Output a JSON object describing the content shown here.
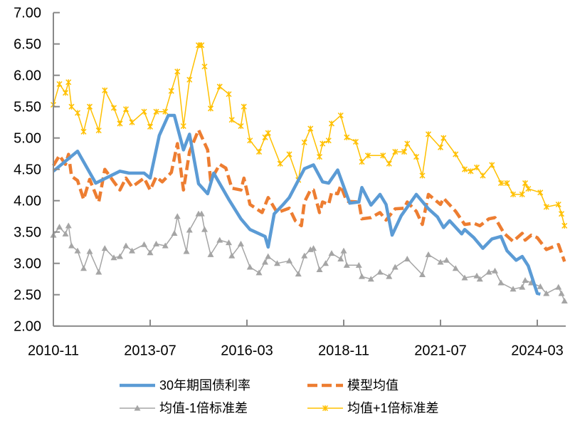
{
  "chart_data": {
    "type": "line",
    "title": "",
    "xlabel": "",
    "ylabel": "",
    "ylim": [
      2.0,
      7.0
    ],
    "yticks": [
      "2.00",
      "2.50",
      "3.00",
      "3.50",
      "4.00",
      "4.50",
      "5.00",
      "5.50",
      "6.00",
      "6.50",
      "7.00"
    ],
    "xrange": [
      "2010-11",
      "2024-12"
    ],
    "xticks": [
      "2010-11",
      "2013-07",
      "2016-03",
      "2018-11",
      "2021-07",
      "2024-03"
    ],
    "grid": false,
    "legend_position": "bottom",
    "series": [
      {
        "name": "30年期国债利率",
        "color": "#5B9BD5",
        "style": "solid",
        "marker": "none",
        "points": [
          [
            "2010-11",
            4.47
          ],
          [
            "2011-07",
            4.79
          ],
          [
            "2012-01",
            4.28
          ],
          [
            "2012-09",
            4.47
          ],
          [
            "2012-12",
            4.44
          ],
          [
            "2013-05",
            4.44
          ],
          [
            "2013-07",
            4.36
          ],
          [
            "2013-10",
            5.04
          ],
          [
            "2014-01",
            5.36
          ],
          [
            "2014-03",
            5.36
          ],
          [
            "2014-06",
            4.81
          ],
          [
            "2014-08",
            5.06
          ],
          [
            "2014-11",
            4.27
          ],
          [
            "2015-02",
            4.11
          ],
          [
            "2015-04",
            4.44
          ],
          [
            "2015-09",
            4.02
          ],
          [
            "2016-01",
            3.71
          ],
          [
            "2016-04",
            3.54
          ],
          [
            "2016-09",
            3.43
          ],
          [
            "2016-10",
            3.26
          ],
          [
            "2016-12",
            3.79
          ],
          [
            "2017-03",
            3.94
          ],
          [
            "2017-05",
            4.05
          ],
          [
            "2017-10",
            4.51
          ],
          [
            "2018-01",
            4.57
          ],
          [
            "2018-04",
            4.3
          ],
          [
            "2018-06",
            4.28
          ],
          [
            "2018-09",
            4.49
          ],
          [
            "2019-01",
            3.96
          ],
          [
            "2019-04",
            3.98
          ],
          [
            "2019-05",
            4.21
          ],
          [
            "2019-08",
            3.93
          ],
          [
            "2019-11",
            4.1
          ],
          [
            "2020-01",
            3.94
          ],
          [
            "2020-03",
            3.45
          ],
          [
            "2020-06",
            3.76
          ],
          [
            "2020-11",
            4.1
          ],
          [
            "2021-03",
            3.87
          ],
          [
            "2021-06",
            3.74
          ],
          [
            "2021-08",
            3.57
          ],
          [
            "2021-10",
            3.68
          ],
          [
            "2022-02",
            3.47
          ],
          [
            "2022-03",
            3.54
          ],
          [
            "2022-06",
            3.41
          ],
          [
            "2022-09",
            3.24
          ],
          [
            "2022-12",
            3.39
          ],
          [
            "2023-03",
            3.43
          ],
          [
            "2023-05",
            3.2
          ],
          [
            "2023-08",
            3.05
          ],
          [
            "2023-10",
            3.11
          ],
          [
            "2023-12",
            2.96
          ],
          [
            "2024-03",
            2.52
          ],
          [
            "2024-04",
            2.51
          ]
        ]
      },
      {
        "name": "模型均值",
        "color": "#ED7D31",
        "style": "dashed",
        "marker": "none",
        "points": [
          [
            "2010-11",
            4.56
          ],
          [
            "2011-01",
            4.72
          ],
          [
            "2011-03",
            4.58
          ],
          [
            "2011-04",
            4.74
          ],
          [
            "2011-05",
            4.39
          ],
          [
            "2011-07",
            4.32
          ],
          [
            "2011-09",
            4.02
          ],
          [
            "2011-11",
            4.34
          ],
          [
            "2012-02",
            3.98
          ],
          [
            "2012-04",
            4.5
          ],
          [
            "2012-07",
            4.3
          ],
          [
            "2012-09",
            4.17
          ],
          [
            "2012-11",
            4.36
          ],
          [
            "2013-01",
            4.22
          ],
          [
            "2013-05",
            4.36
          ],
          [
            "2013-07",
            4.17
          ],
          [
            "2013-09",
            4.38
          ],
          [
            "2013-11",
            4.3
          ],
          [
            "2014-02",
            4.45
          ],
          [
            "2014-04",
            4.91
          ],
          [
            "2014-06",
            4.17
          ],
          [
            "2014-08",
            4.78
          ],
          [
            "2014-11",
            5.13
          ],
          [
            "2015-02",
            4.81
          ],
          [
            "2015-03",
            4.32
          ],
          [
            "2015-06",
            4.58
          ],
          [
            "2015-08",
            4.52
          ],
          [
            "2015-10",
            4.2
          ],
          [
            "2016-01",
            4.17
          ],
          [
            "2016-02",
            4.36
          ],
          [
            "2016-04",
            3.94
          ],
          [
            "2016-08",
            3.81
          ],
          [
            "2016-10",
            4.05
          ],
          [
            "2017-01",
            3.81
          ],
          [
            "2017-05",
            3.88
          ],
          [
            "2017-07",
            3.68
          ],
          [
            "2017-09",
            3.6
          ],
          [
            "2017-10",
            3.98
          ],
          [
            "2017-12",
            4.17
          ],
          [
            "2018-01",
            4.17
          ],
          [
            "2018-03",
            3.81
          ],
          [
            "2018-04",
            3.98
          ],
          [
            "2018-06",
            3.94
          ],
          [
            "2018-07",
            4.13
          ],
          [
            "2018-09",
            4.11
          ],
          [
            "2018-10",
            4.24
          ],
          [
            "2018-12",
            3.99
          ],
          [
            "2019-04",
            3.98
          ],
          [
            "2019-05",
            3.71
          ],
          [
            "2019-08",
            3.73
          ],
          [
            "2019-11",
            3.81
          ],
          [
            "2020-01",
            3.69
          ],
          [
            "2020-04",
            3.87
          ],
          [
            "2020-07",
            3.88
          ],
          [
            "2020-08",
            3.98
          ],
          [
            "2020-11",
            3.83
          ],
          [
            "2021-01",
            3.62
          ],
          [
            "2021-03",
            4.1
          ],
          [
            "2021-07",
            3.94
          ],
          [
            "2021-08",
            4.04
          ],
          [
            "2021-12",
            3.83
          ],
          [
            "2022-03",
            3.62
          ],
          [
            "2022-06",
            3.64
          ],
          [
            "2022-08",
            3.6
          ],
          [
            "2022-11",
            3.71
          ],
          [
            "2023-01",
            3.73
          ],
          [
            "2023-04",
            3.48
          ],
          [
            "2023-07",
            3.35
          ],
          [
            "2023-10",
            3.48
          ],
          [
            "2023-11",
            3.37
          ],
          [
            "2024-01",
            3.45
          ],
          [
            "2024-03",
            3.41
          ],
          [
            "2024-06",
            3.22
          ],
          [
            "2024-10",
            3.3
          ],
          [
            "2024-12",
            3.03
          ]
        ]
      },
      {
        "name": "均值-1倍标准差",
        "color": "#A5A5A5",
        "style": "solid",
        "marker": "triangle",
        "points": [
          [
            "2010-11",
            3.45
          ],
          [
            "2011-01",
            3.58
          ],
          [
            "2011-03",
            3.47
          ],
          [
            "2011-04",
            3.6
          ],
          [
            "2011-05",
            3.28
          ],
          [
            "2011-07",
            3.2
          ],
          [
            "2011-09",
            2.92
          ],
          [
            "2011-11",
            3.19
          ],
          [
            "2012-02",
            2.86
          ],
          [
            "2012-04",
            3.24
          ],
          [
            "2012-07",
            3.09
          ],
          [
            "2012-09",
            3.11
          ],
          [
            "2012-11",
            3.28
          ],
          [
            "2013-01",
            3.2
          ],
          [
            "2013-05",
            3.3
          ],
          [
            "2013-07",
            3.17
          ],
          [
            "2013-09",
            3.31
          ],
          [
            "2013-12",
            3.28
          ],
          [
            "2014-03",
            3.48
          ],
          [
            "2014-04",
            3.75
          ],
          [
            "2014-07",
            3.19
          ],
          [
            "2014-08",
            3.53
          ],
          [
            "2014-11",
            3.79
          ],
          [
            "2014-12",
            3.79
          ],
          [
            "2015-01",
            3.54
          ],
          [
            "2015-03",
            3.14
          ],
          [
            "2015-06",
            3.37
          ],
          [
            "2015-09",
            3.33
          ],
          [
            "2015-10",
            3.12
          ],
          [
            "2016-01",
            3.31
          ],
          [
            "2016-04",
            2.94
          ],
          [
            "2016-07",
            2.85
          ],
          [
            "2016-09",
            3.02
          ],
          [
            "2016-10",
            3.11
          ],
          [
            "2017-01",
            3.0
          ],
          [
            "2017-05",
            3.04
          ],
          [
            "2017-08",
            2.83
          ],
          [
            "2017-10",
            3.12
          ],
          [
            "2017-12",
            3.22
          ],
          [
            "2018-01",
            3.24
          ],
          [
            "2018-03",
            2.9
          ],
          [
            "2018-05",
            3.0
          ],
          [
            "2018-07",
            3.16
          ],
          [
            "2018-10",
            3.07
          ],
          [
            "2018-11",
            3.2
          ],
          [
            "2018-12",
            2.97
          ],
          [
            "2019-04",
            2.97
          ],
          [
            "2019-05",
            2.79
          ],
          [
            "2019-08",
            2.75
          ],
          [
            "2019-11",
            2.86
          ],
          [
            "2020-02",
            2.79
          ],
          [
            "2020-04",
            2.94
          ],
          [
            "2020-08",
            3.07
          ],
          [
            "2021-01",
            2.82
          ],
          [
            "2021-03",
            3.14
          ],
          [
            "2021-07",
            3.02
          ],
          [
            "2021-09",
            3.05
          ],
          [
            "2021-12",
            2.92
          ],
          [
            "2022-03",
            2.77
          ],
          [
            "2022-07",
            2.8
          ],
          [
            "2022-08",
            2.75
          ],
          [
            "2022-11",
            2.86
          ],
          [
            "2023-01",
            2.88
          ],
          [
            "2023-03",
            2.69
          ],
          [
            "2023-07",
            2.59
          ],
          [
            "2023-10",
            2.62
          ],
          [
            "2023-11",
            2.73
          ],
          [
            "2024-01",
            2.69
          ],
          [
            "2024-04",
            2.63
          ],
          [
            "2024-06",
            2.52
          ],
          [
            "2024-10",
            2.62
          ],
          [
            "2024-11",
            2.52
          ],
          [
            "2024-12",
            2.4
          ]
        ]
      },
      {
        "name": "均值+1倍标准差",
        "color": "#FFC000",
        "style": "solid",
        "marker": "star",
        "points": [
          [
            "2010-11",
            5.53
          ],
          [
            "2011-01",
            5.86
          ],
          [
            "2011-03",
            5.72
          ],
          [
            "2011-04",
            5.89
          ],
          [
            "2011-05",
            5.5
          ],
          [
            "2011-07",
            5.4
          ],
          [
            "2011-09",
            5.1
          ],
          [
            "2011-11",
            5.5
          ],
          [
            "2012-02",
            5.12
          ],
          [
            "2012-04",
            5.76
          ],
          [
            "2012-07",
            5.48
          ],
          [
            "2012-09",
            5.23
          ],
          [
            "2012-11",
            5.46
          ],
          [
            "2013-01",
            5.25
          ],
          [
            "2013-05",
            5.42
          ],
          [
            "2013-07",
            5.18
          ],
          [
            "2013-09",
            5.42
          ],
          [
            "2013-12",
            5.42
          ],
          [
            "2014-02",
            5.75
          ],
          [
            "2014-04",
            6.06
          ],
          [
            "2014-06",
            5.19
          ],
          [
            "2014-08",
            5.93
          ],
          [
            "2014-11",
            6.48
          ],
          [
            "2014-12",
            6.48
          ],
          [
            "2015-01",
            6.14
          ],
          [
            "2015-03",
            5.47
          ],
          [
            "2015-06",
            5.82
          ],
          [
            "2015-09",
            5.7
          ],
          [
            "2015-10",
            5.29
          ],
          [
            "2016-01",
            5.19
          ],
          [
            "2016-02",
            5.5
          ],
          [
            "2016-04",
            4.96
          ],
          [
            "2016-07",
            4.78
          ],
          [
            "2016-09",
            5.01
          ],
          [
            "2016-10",
            5.08
          ],
          [
            "2017-02",
            4.59
          ],
          [
            "2017-05",
            4.74
          ],
          [
            "2017-08",
            4.33
          ],
          [
            "2017-10",
            4.93
          ],
          [
            "2017-12",
            5.15
          ],
          [
            "2018-03",
            4.7
          ],
          [
            "2018-04",
            4.91
          ],
          [
            "2018-06",
            4.96
          ],
          [
            "2018-07",
            5.23
          ],
          [
            "2018-10",
            5.36
          ],
          [
            "2018-12",
            5.01
          ],
          [
            "2019-03",
            4.94
          ],
          [
            "2019-05",
            4.62
          ],
          [
            "2019-07",
            4.72
          ],
          [
            "2019-12",
            4.72
          ],
          [
            "2020-02",
            4.59
          ],
          [
            "2020-04",
            4.78
          ],
          [
            "2020-07",
            4.78
          ],
          [
            "2020-08",
            4.91
          ],
          [
            "2020-11",
            4.7
          ],
          [
            "2021-01",
            4.4
          ],
          [
            "2021-03",
            5.06
          ],
          [
            "2021-07",
            4.85
          ],
          [
            "2021-08",
            5.0
          ],
          [
            "2021-12",
            4.74
          ],
          [
            "2022-03",
            4.5
          ],
          [
            "2022-05",
            4.47
          ],
          [
            "2022-07",
            4.53
          ],
          [
            "2022-09",
            4.4
          ],
          [
            "2022-12",
            4.57
          ],
          [
            "2023-03",
            4.28
          ],
          [
            "2023-05",
            4.28
          ],
          [
            "2023-07",
            4.1
          ],
          [
            "2023-10",
            4.1
          ],
          [
            "2023-11",
            4.28
          ],
          [
            "2023-12",
            4.19
          ],
          [
            "2024-04",
            4.13
          ],
          [
            "2024-06",
            3.9
          ],
          [
            "2024-10",
            3.94
          ],
          [
            "2024-11",
            3.79
          ],
          [
            "2024-12",
            3.6
          ]
        ]
      }
    ]
  }
}
